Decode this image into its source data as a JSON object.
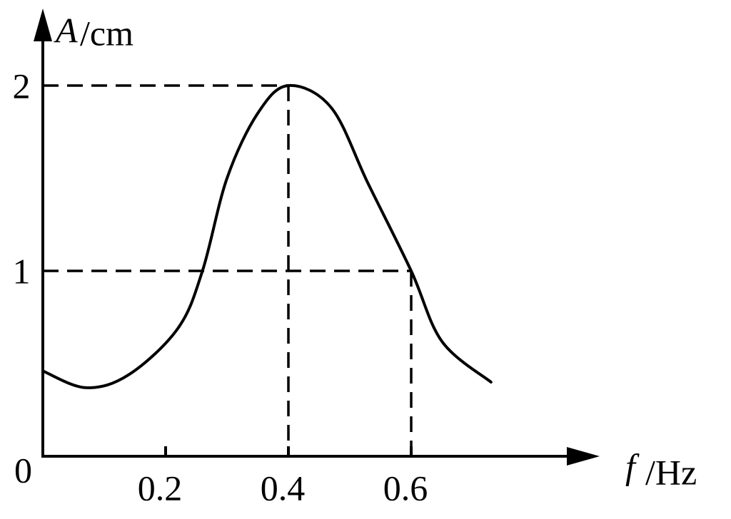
{
  "chart_data": {
    "type": "line",
    "x_label": {
      "symbol": "f",
      "unit": "/Hz"
    },
    "y_label": {
      "symbol": "A",
      "unit": "/cm"
    },
    "origin_label": "0",
    "xlim": [
      0,
      0.9
    ],
    "ylim": [
      0,
      2.4
    ],
    "xticks": [
      0.2,
      0.4,
      0.6
    ],
    "yticks": [
      1,
      2
    ],
    "color": "#000000",
    "x": [
      0,
      0.07,
      0.14,
      0.22,
      0.26,
      0.3,
      0.35,
      0.4,
      0.47,
      0.53,
      0.6,
      0.65,
      0.73
    ],
    "values": [
      0.46,
      0.37,
      0.44,
      0.69,
      1.0,
      1.5,
      1.85,
      2.0,
      1.88,
      1.47,
      1.0,
      0.62,
      0.4
    ],
    "guides": [
      {
        "x": 0.4,
        "y": 2
      },
      {
        "x": 0.6,
        "y": 1
      }
    ]
  }
}
